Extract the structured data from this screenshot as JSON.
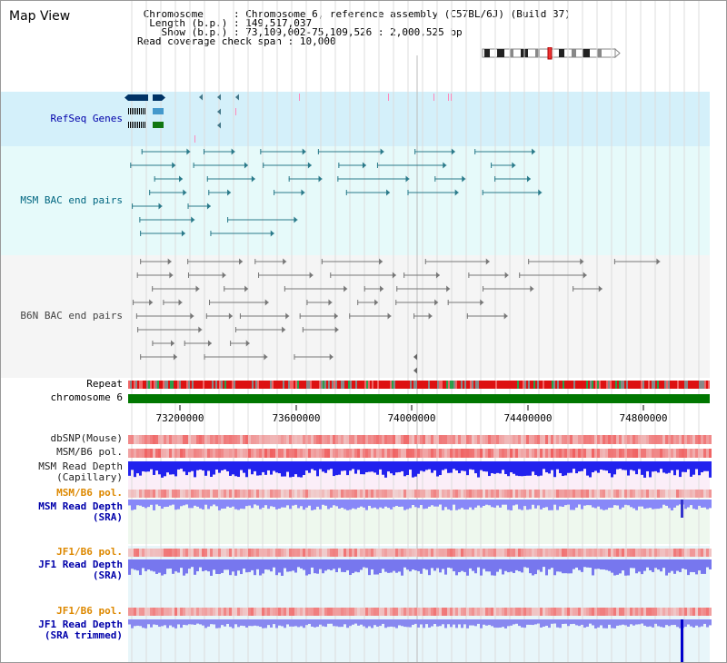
{
  "title": "Map View",
  "info": {
    "chromosome_key": "Chromosome",
    "chromosome_val": "Chromosome 6, reference assembly (C57BL/6J) (Build 37)",
    "length_key": "Length (b.p.)",
    "length_val": "149,517,037",
    "show_key": "Show (b.p.)",
    "show_val": "73,109,002-75,109,526 : 2,000,525 bp",
    "span_key": "Read coverage check span",
    "span_val": "10,000"
  },
  "tracks": {
    "refseq": "RefSeq Genes",
    "msm_bac": "MSM BAC end pairs",
    "b6n_bac": "B6N BAC end pairs",
    "repeat": "Repeat",
    "chromosome": "chromosome 6",
    "dbsnp": "dbSNP(Mouse)",
    "msm_b6_pol": "MSM/B6 pol.",
    "msm_rd_cap_1": "MSM Read Depth",
    "msm_rd_cap_2": "(Capillary)",
    "msm_b6_pol2": "MSM/B6 pol.",
    "msm_rd_sra_1": "MSM Read Depth",
    "msm_rd_sra_2": "(SRA)",
    "jf1_b6_pol": "JF1/B6 pol.",
    "jf1_rd_sra_1": "JF1 Read Depth",
    "jf1_rd_sra_2": "(SRA)",
    "jf1_b6_pol2": "JF1/B6 pol.",
    "jf1_rd_tr_1": "JF1 Read Depth",
    "jf1_rd_tr_2": "(SRA trimmed)"
  },
  "axis": {
    "ticks": [
      "73200000",
      "73600000",
      "74000000",
      "74400000",
      "74800000"
    ]
  },
  "colors": {
    "refseq_bg": "#d4f0fa",
    "msm_bac_bg": "#e6fafa",
    "b6n_bg": "#f5f5f5",
    "chrom_green": "#007700",
    "label_blue": "#0000aa",
    "label_teal": "#006680",
    "label_orange": "#dd8800",
    "depth_blue": "#3333ff",
    "depth_light": "#8080ff"
  }
}
